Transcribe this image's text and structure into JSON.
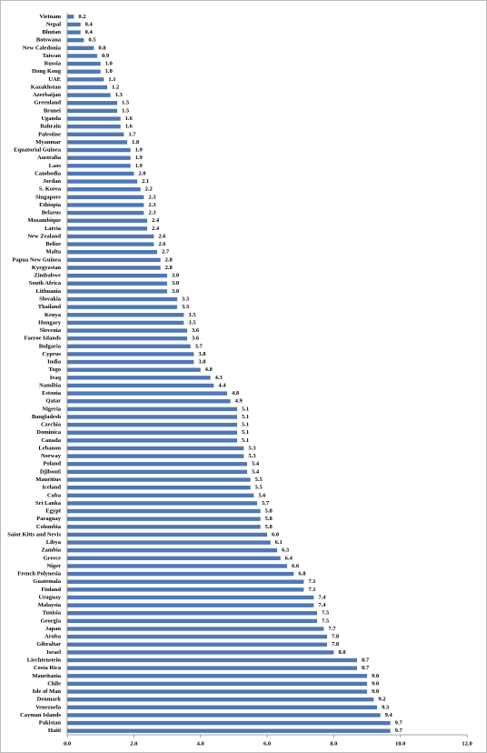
{
  "chart_data": {
    "type": "bar",
    "orientation": "horizontal",
    "color": "#4f78b4",
    "categories": [
      "Vietnam",
      "Nepal",
      "Bhutan",
      "Botswana",
      "New Caledonia",
      "Taiwan",
      "Russia",
      "Hong Kong",
      "UAE",
      "Kazakhstan",
      "Azerbaijan",
      "Greenland",
      "Brunei",
      "Uganda",
      "Bahrain",
      "Palestine",
      "Myanmar",
      "Equatorial Guinea",
      "Australia",
      "Laos",
      "Cambodia",
      "Jordan",
      "S. Korea",
      "Singapore",
      "Ethiopia",
      "Belarus",
      "Mozambique",
      "Latvia",
      "New Zealand",
      "Belize",
      "Malta",
      "Papua New Guinea",
      "Kyrgyzstan",
      "Zimbabwe",
      "South Africa",
      "Lithuania",
      "Slovakia",
      "Thailand",
      "Kenya",
      "Hungary",
      "Slovenia",
      "Faeroe Islands",
      "Bulgaria",
      "Cyprus",
      "India",
      "Togo",
      "Iraq",
      "Namibia",
      "Estonia",
      "Qatar",
      "Nigeria",
      "Bangladesh",
      "Czechia",
      "Dominica",
      "Canada",
      "Lebanon",
      "Norway",
      "Poland",
      "Djibouti",
      "Mauritius",
      "Iceland",
      "Cuba",
      "Sri Lanka",
      "Egypt",
      "Paraguay",
      "Colombia",
      "Saint Kitts and Nevis",
      "Libya",
      "Zambia",
      "Greece",
      "Niger",
      "French Polynesia",
      "Guatemala",
      "Finland",
      "Uruguay",
      "Malaysia",
      "Tunisia",
      "Georgia",
      "Japan",
      "Aruba",
      "Gibraltar",
      "Israel",
      "Liechtenstein",
      "Costa Rica",
      "Mauritania",
      "Chile",
      "Isle of Man",
      "Denmark",
      "Venezuela",
      "Cayman Islands",
      "Pakistan",
      "Haiti"
    ],
    "values": [
      0.2,
      0.4,
      0.4,
      0.5,
      0.8,
      0.9,
      1.0,
      1.0,
      1.1,
      1.2,
      1.3,
      1.5,
      1.5,
      1.6,
      1.6,
      1.7,
      1.8,
      1.9,
      1.9,
      1.9,
      2.0,
      2.1,
      2.2,
      2.3,
      2.3,
      2.3,
      2.4,
      2.4,
      2.6,
      2.6,
      2.7,
      2.8,
      2.8,
      3.0,
      3.0,
      3.0,
      3.3,
      3.3,
      3.5,
      3.5,
      3.6,
      3.6,
      3.7,
      3.8,
      3.8,
      4.0,
      4.3,
      4.4,
      4.8,
      4.9,
      5.1,
      5.1,
      5.1,
      5.1,
      5.1,
      5.3,
      5.3,
      5.4,
      5.4,
      5.5,
      5.5,
      5.6,
      5.7,
      5.8,
      5.8,
      5.8,
      6.0,
      6.1,
      6.3,
      6.4,
      6.6,
      6.8,
      7.1,
      7.1,
      7.4,
      7.4,
      7.5,
      7.5,
      7.7,
      7.8,
      7.8,
      8.0,
      8.7,
      8.7,
      9.0,
      9.0,
      9.0,
      9.2,
      9.3,
      9.4,
      9.7,
      9.7
    ],
    "value_labels": [
      "0.2",
      "0.4",
      "0.4",
      "0.5",
      "0.8",
      "0.9",
      "1.0",
      "1.0",
      "1.1",
      "1.2",
      "1.3",
      "1.5",
      "1.5",
      "1.6",
      "1.6",
      "1.7",
      "1.8",
      "1.9",
      "1.9",
      "1.9",
      "2.0",
      "2.1",
      "2.2",
      "2.3",
      "2.3",
      "2.3",
      "2.4",
      "2.4",
      "2.6",
      "2.6",
      "2.7",
      "2.8",
      "2.8",
      "3.0",
      "3.0",
      "3.0",
      "3.3",
      "3.3",
      "3.5",
      "3.5",
      "3.6",
      "3.6",
      "3.7",
      "3.8",
      "3.8",
      "4.0",
      "4.3",
      "4.4",
      "4.8",
      "4.9",
      "5.1",
      "5.1",
      "5.1",
      "5.1",
      "5.1",
      "5.3",
      "5.3",
      "5.4",
      "5.4",
      "5.5",
      "5.5",
      "5.6",
      "5.7",
      "5.8",
      "5.8",
      "5.8",
      "6.0",
      "6.1",
      "6.3",
      "6.4",
      "6.6",
      "6.8",
      "7.1",
      "7.1",
      "7.4",
      "7.4",
      "7.5",
      "7.5",
      "7.7",
      "7.8",
      "7.8",
      "8.0",
      "8.7",
      "8.7",
      "9.0",
      "9.0",
      "9.0",
      "9.2",
      "9.3",
      "9.4",
      "9.7",
      "9.7"
    ],
    "xlim": [
      0,
      12
    ],
    "xticks": [
      {
        "value": 0,
        "label": "0.0"
      },
      {
        "value": 2,
        "label": "2.0"
      },
      {
        "value": 4,
        "label": "4.0"
      },
      {
        "value": 6,
        "label": "6.0"
      },
      {
        "value": 8,
        "label": "8.0"
      },
      {
        "value": 10,
        "label": "10.0"
      },
      {
        "value": 12,
        "label": "12.0"
      }
    ]
  }
}
